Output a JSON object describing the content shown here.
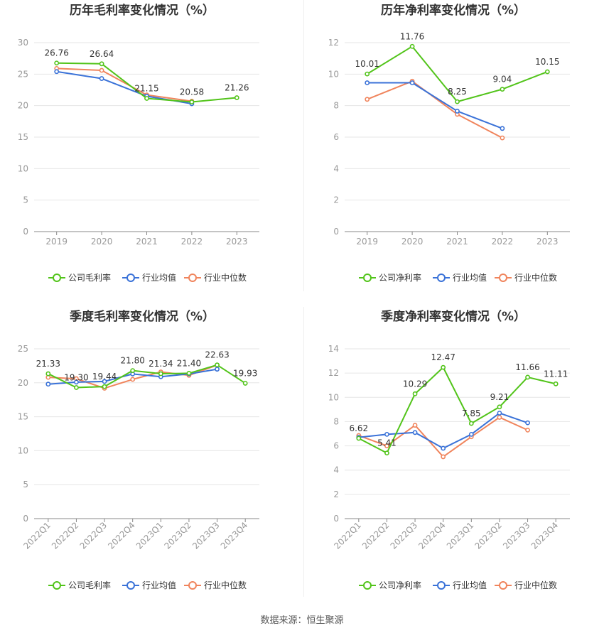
{
  "footer": {
    "source": "数据来源：恒生聚源"
  },
  "colors": {
    "company": "#52c41a",
    "avg": "#3a72d8",
    "median": "#f0845c",
    "grid": "#e6e6e6",
    "axis": "#999999",
    "text": "#333333"
  },
  "chart_data": [
    {
      "type": "line",
      "title": "历年毛利率变化情况（%）",
      "categories": [
        "2019",
        "2020",
        "2021",
        "2022",
        "2023"
      ],
      "ylim": [
        0,
        30
      ],
      "yticks": [
        0,
        5,
        10,
        15,
        20,
        25,
        30
      ],
      "legend_position": "bottom-center",
      "series": [
        {
          "name": "公司毛利率",
          "key": "company",
          "values": [
            26.76,
            26.64,
            21.15,
            20.58,
            21.26
          ],
          "labels": [
            "26.76",
            "26.64",
            "21.15",
            "20.58",
            "21.26"
          ]
        },
        {
          "name": "行业均值",
          "key": "avg",
          "values": [
            25.4,
            24.3,
            21.5,
            20.3,
            null
          ]
        },
        {
          "name": "行业中位数",
          "key": "median",
          "values": [
            25.9,
            25.6,
            21.7,
            20.7,
            null
          ]
        }
      ]
    },
    {
      "type": "line",
      "title": "历年净利率变化情况（%）",
      "categories": [
        "2019",
        "2020",
        "2021",
        "2022",
        "2023"
      ],
      "ylim": [
        0,
        12
      ],
      "yticks": [
        0,
        2,
        4,
        6,
        8,
        10,
        12
      ],
      "legend_position": "bottom-center",
      "series": [
        {
          "name": "公司净利率",
          "key": "company",
          "values": [
            10.01,
            11.76,
            8.25,
            9.04,
            10.15
          ],
          "labels": [
            "10.01",
            "11.76",
            "8.25",
            "9.04",
            "10.15"
          ]
        },
        {
          "name": "行业均值",
          "key": "avg",
          "values": [
            9.45,
            9.45,
            7.65,
            6.55,
            null
          ]
        },
        {
          "name": "行业中位数",
          "key": "median",
          "values": [
            8.4,
            9.55,
            7.45,
            5.95,
            null
          ]
        }
      ]
    },
    {
      "type": "line",
      "title": "季度毛利率变化情况（%）",
      "categories": [
        "2022Q1",
        "2022Q2",
        "2022Q3",
        "2022Q4",
        "2023Q1",
        "2023Q2",
        "2023Q3",
        "2023Q4"
      ],
      "ylim": [
        0,
        25
      ],
      "yticks": [
        0,
        5,
        10,
        15,
        20,
        25
      ],
      "legend_position": "bottom-center",
      "series": [
        {
          "name": "公司毛利率",
          "key": "company",
          "values": [
            21.33,
            19.3,
            19.44,
            21.8,
            21.34,
            21.4,
            22.63,
            19.93
          ],
          "labels": [
            "21.33",
            "19.30",
            "19.44",
            "21.80",
            "21.34",
            "21.40",
            "22.63",
            "19.93"
          ]
        },
        {
          "name": "行业均值",
          "key": "avg",
          "values": [
            19.8,
            20.1,
            20.2,
            21.3,
            20.9,
            21.3,
            22.0,
            null
          ]
        },
        {
          "name": "行业中位数",
          "key": "median",
          "values": [
            20.8,
            20.6,
            19.2,
            20.5,
            21.6,
            21.1,
            22.6,
            null
          ]
        }
      ]
    },
    {
      "type": "line",
      "title": "季度净利率变化情况（%）",
      "categories": [
        "2022Q1",
        "2022Q2",
        "2022Q3",
        "2022Q4",
        "2023Q1",
        "2023Q2",
        "2023Q3",
        "2023Q4"
      ],
      "ylim": [
        0,
        14
      ],
      "yticks": [
        0,
        2,
        4,
        6,
        8,
        10,
        12,
        14
      ],
      "legend_position": "bottom-center",
      "series": [
        {
          "name": "公司净利率",
          "key": "company",
          "values": [
            6.62,
            5.41,
            10.29,
            12.47,
            7.85,
            9.21,
            11.66,
            11.11
          ],
          "labels": [
            "6.62",
            "5.41",
            "10.29",
            "12.47",
            "7.85",
            "9.21",
            "11.66",
            "11.11"
          ]
        },
        {
          "name": "行业均值",
          "key": "avg",
          "values": [
            6.7,
            6.95,
            7.1,
            5.8,
            6.95,
            8.7,
            7.9,
            null
          ]
        },
        {
          "name": "行业中位数",
          "key": "median",
          "values": [
            6.85,
            6.0,
            7.7,
            5.1,
            6.75,
            8.35,
            7.3,
            null
          ]
        }
      ]
    }
  ]
}
